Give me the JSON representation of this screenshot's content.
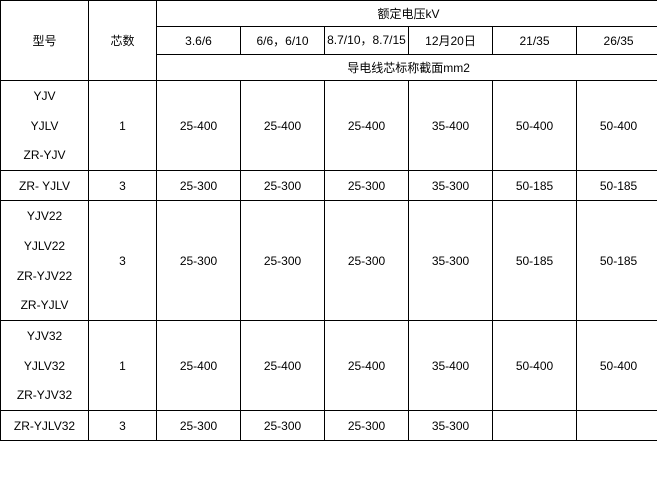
{
  "header": {
    "model": "型号",
    "cores": "芯数",
    "rated_voltage": "额定电压kV",
    "voltage_cols": [
      "3.6/6",
      "6/6，6/10",
      "8.7/10，8.7/15",
      "12月20日",
      "21/35",
      "26/35"
    ],
    "cross_section": "导电线芯标称截面mm2"
  },
  "groups": [
    {
      "models": [
        "YJV",
        "YJLV",
        "ZR-YJV"
      ],
      "rows": [
        {
          "cores": "1",
          "values": [
            "25-400",
            "25-400",
            "25-400",
            "35-400",
            "50-400",
            "50-400"
          ]
        }
      ],
      "extra_model": "ZR- YJLV",
      "extra_row": {
        "cores": "3",
        "values": [
          "25-300",
          "25-300",
          "25-300",
          "35-300",
          "50-185",
          "50-185"
        ]
      }
    },
    {
      "models": [
        "YJV22",
        "YJLV22",
        "ZR-YJV22",
        "ZR-YJLV"
      ],
      "rows": [
        {
          "cores": "3",
          "values": [
            "25-300",
            "25-300",
            "25-300",
            "35-300",
            "50-185",
            "50-185"
          ]
        }
      ]
    },
    {
      "models": [
        "YJV32",
        "YJLV32",
        "ZR-YJV32"
      ],
      "rows": [
        {
          "cores": "1",
          "values": [
            "25-400",
            "25-400",
            "25-400",
            "35-400",
            "50-400",
            "50-400"
          ]
        }
      ],
      "extra_model": "ZR-YJLV32",
      "extra_row": {
        "cores": "3",
        "values": [
          "25-300",
          "25-300",
          "25-300",
          "35-300",
          "",
          ""
        ]
      }
    }
  ]
}
